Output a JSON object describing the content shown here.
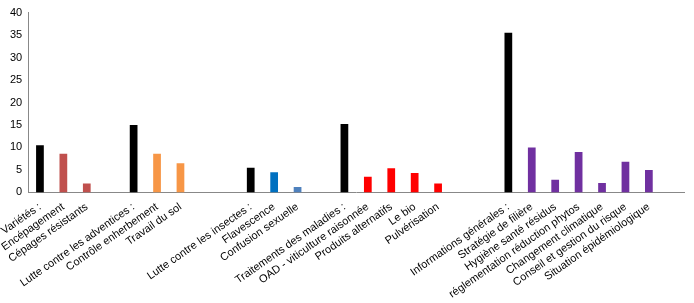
{
  "chart_data": {
    "type": "bar",
    "categories": [
      "Variétés :",
      "Encépagement",
      "Cépages résistants",
      null,
      "Lutte contre les adventices :",
      "Contrôle enherbement",
      "Travail du sol",
      null,
      null,
      "Lutte contre les insectes :",
      "Flavescence",
      "Confusion sexuelle",
      null,
      "Traitements des maladies :",
      "OAD - viticulture raisonnée",
      "Produits alternatifs",
      "Le bio",
      "Pulvérisation",
      null,
      null,
      "Informations générales :",
      "Stratégie de filière",
      "Hygiène santé résidus",
      "réglementation réduction phytos",
      "Changement climatique",
      "Conseil et gestion du risque",
      "Situation épidémiologique",
      null
    ],
    "values": [
      10.5,
      8.6,
      2,
      null,
      15,
      8.6,
      6.5,
      null,
      null,
      5.5,
      4.5,
      1.2,
      null,
      15.2,
      3.5,
      5.4,
      4.3,
      2,
      null,
      null,
      35.5,
      10,
      2.8,
      9,
      2.1,
      6.8,
      5,
      null
    ],
    "colors": [
      "#000000",
      "#c0504d",
      "#c0504d",
      null,
      "#000000",
      "#f79646",
      "#f79646",
      null,
      null,
      "#000000",
      "#0070c0",
      "#4f81bd",
      null,
      "#000000",
      "#ff0000",
      "#ff0000",
      "#ff0000",
      "#ff0000",
      null,
      null,
      "#000000",
      "#7030a0",
      "#7030a0",
      "#7030a0",
      "#7030a0",
      "#7030a0",
      "#7030a0",
      null
    ],
    "ylim": [
      0,
      40
    ],
    "yticks": [
      0,
      5,
      10,
      15,
      20,
      25,
      30,
      35,
      40
    ],
    "grid": false
  }
}
